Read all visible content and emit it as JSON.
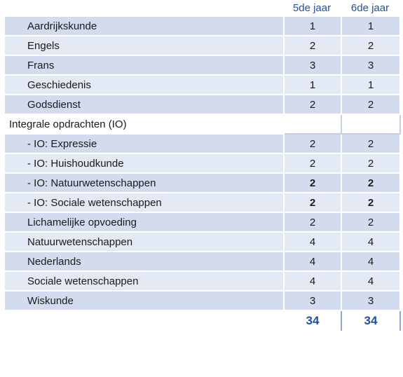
{
  "header": {
    "col5": "5de jaar",
    "col6": "6de jaar"
  },
  "rows": [
    {
      "name": "Aardrijkskunde",
      "y5": "1",
      "y6": "1"
    },
    {
      "name": "Engels",
      "y5": "2",
      "y6": "2"
    },
    {
      "name": "Frans",
      "y5": "3",
      "y6": "3"
    },
    {
      "name": "Geschiedenis",
      "y5": "1",
      "y6": "1"
    },
    {
      "name": "Godsdienst",
      "y5": "2",
      "y6": "2"
    },
    {
      "name": "Integrale opdrachten (IO)",
      "y5": "",
      "y6": ""
    },
    {
      "name": "- IO: Expressie",
      "y5": "2",
      "y6": "2"
    },
    {
      "name": "- IO: Huishoudkunde",
      "y5": "2",
      "y6": "2"
    },
    {
      "name": "- IO: Natuurwetenschappen",
      "y5": "2",
      "y6": "2"
    },
    {
      "name": "- IO: Sociale wetenschappen",
      "y5": "2",
      "y6": "2"
    },
    {
      "name": "Lichamelijke opvoeding",
      "y5": "2",
      "y6": "2"
    },
    {
      "name": "Natuurwetenschappen",
      "y5": "4",
      "y6": "4"
    },
    {
      "name": "Nederlands",
      "y5": "4",
      "y6": "4"
    },
    {
      "name": "Sociale wetenschappen",
      "y5": "4",
      "y6": "4"
    },
    {
      "name": "Wiskunde",
      "y5": "3",
      "y6": "3"
    }
  ],
  "totals": {
    "y5": "34",
    "y6": "34"
  }
}
